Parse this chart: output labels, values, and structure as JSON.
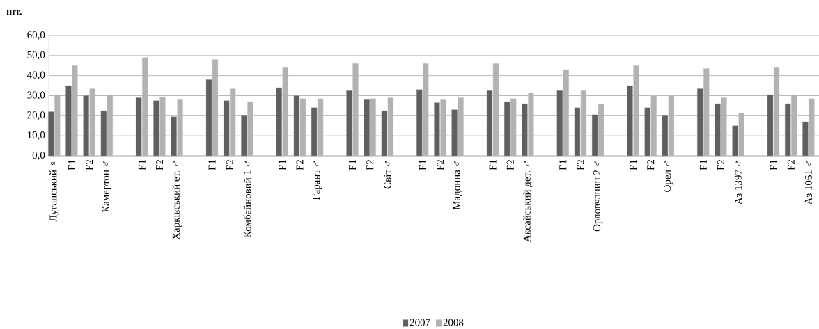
{
  "chart_data": {
    "type": "bar",
    "ylabel": "шт.",
    "categories": [
      "Луганський ♀",
      "F1",
      "F2",
      "Камертон ♂",
      null,
      "F1",
      "F2",
      "Харківський ет. ♂",
      null,
      "F1",
      "F2",
      "Комбайновий 1 ♂",
      null,
      "F1",
      "F2",
      "Гарант ♂",
      null,
      "F1",
      "F2",
      "Світ ♂",
      null,
      "F1",
      "F2",
      "Мадонна ♂",
      null,
      "F1",
      "F2",
      "Аксайський дет. ♂",
      null,
      "F1",
      "F2",
      "Орловчанин 2 ♂",
      null,
      "F1",
      "F2",
      "Орел ♂",
      null,
      "F1",
      "F2",
      "Аз 1397 ♂",
      null,
      "F1",
      "F2",
      "Аз 1061 ♂"
    ],
    "series": [
      {
        "name": "2007",
        "color": "#5f5f5f",
        "values": [
          22,
          35,
          30,
          22.5,
          null,
          29,
          27.5,
          19.5,
          null,
          38,
          27.5,
          20,
          null,
          34,
          30,
          24,
          null,
          32.5,
          28,
          22.5,
          null,
          33,
          26.5,
          23,
          null,
          32.5,
          27,
          26,
          null,
          32.5,
          24,
          20.5,
          null,
          35,
          24,
          20,
          null,
          33.5,
          26,
          15,
          null,
          30.5,
          26,
          17
        ]
      },
      {
        "name": "2008",
        "color": "#b2b2b2",
        "values": [
          30.5,
          45,
          33.5,
          30.5,
          null,
          49,
          29.5,
          28,
          null,
          48,
          33.5,
          27,
          null,
          44,
          28.5,
          28.5,
          null,
          46,
          28.5,
          29,
          null,
          46,
          28,
          29,
          null,
          46,
          28.5,
          31.5,
          null,
          43,
          32.5,
          26,
          null,
          45,
          30,
          30,
          null,
          43.5,
          29,
          21.5,
          null,
          44,
          30.5,
          28.5
        ]
      }
    ],
    "ylim": [
      0,
      60
    ],
    "yticks": [
      {
        "value": 0,
        "label": "0,0"
      },
      {
        "value": 10,
        "label": "10,0"
      },
      {
        "value": 20,
        "label": "20,0"
      },
      {
        "value": 30,
        "label": "30,0"
      },
      {
        "value": 40,
        "label": "40,0"
      },
      {
        "value": 50,
        "label": "50,0"
      },
      {
        "value": 60,
        "label": "60,0"
      }
    ],
    "grid": "y",
    "legend": "bottom"
  }
}
